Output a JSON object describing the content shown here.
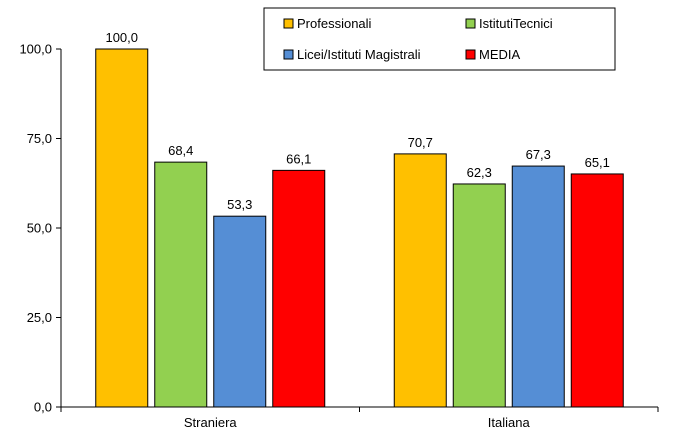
{
  "chart_data": {
    "type": "bar",
    "title": "",
    "xlabel": "",
    "ylabel": "",
    "categories": [
      "Straniera",
      "Italiana"
    ],
    "ylim": [
      0,
      100
    ],
    "yticks": [
      "0,0",
      "25,0",
      "50,0",
      "75,0",
      "100,0"
    ],
    "ytick_values": [
      0,
      25,
      50,
      75,
      100
    ],
    "grid": false,
    "legend_position": "top-right",
    "series": [
      {
        "name": "Professionali",
        "color": "#FFC000",
        "values": [
          100.0,
          70.7
        ],
        "labels": [
          "100,0",
          "70,7"
        ]
      },
      {
        "name": "IstitutiTecnici",
        "color": "#92D050",
        "values": [
          68.4,
          62.3
        ],
        "labels": [
          "68,4",
          "62,3"
        ]
      },
      {
        "name": "Licei/Istituti Magistrali",
        "color": "#558ED5",
        "values": [
          53.3,
          67.3
        ],
        "labels": [
          "53,3",
          "67,3"
        ]
      },
      {
        "name": "MEDIA",
        "color": "#FF0000",
        "values": [
          66.1,
          65.1
        ],
        "labels": [
          "66,1",
          "65,1"
        ]
      }
    ],
    "legend_order": [
      0,
      1,
      2,
      3
    ]
  }
}
